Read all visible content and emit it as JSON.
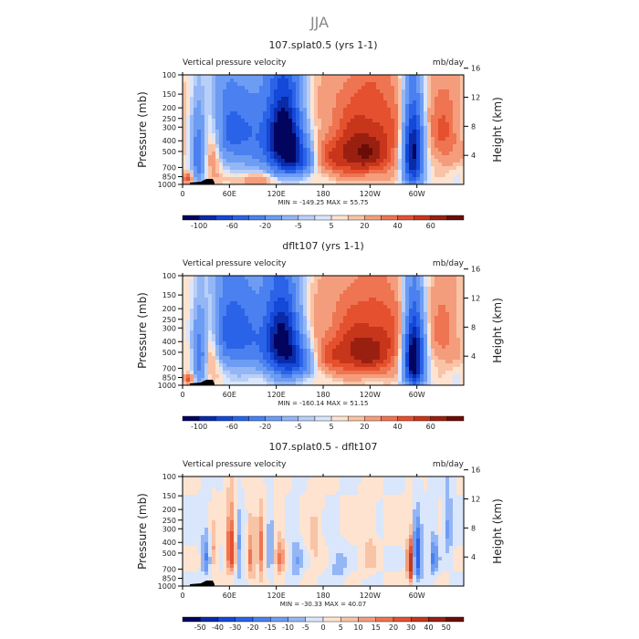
{
  "figure_title": "JJA",
  "chart_data": [
    {
      "type": "heatmap",
      "title": "107.splat0.5 (yrs 1-1)",
      "left_label": "Vertical pressure velocity",
      "right_label": "mb/day",
      "ylabel": "Pressure (mb)",
      "y2label": "Height (km)",
      "x_ticks": [
        "0",
        "60E",
        "120E",
        "180",
        "120W",
        "60W"
      ],
      "x_tick_lons": [
        0,
        60,
        120,
        180,
        240,
        300
      ],
      "xlim": [
        0,
        360
      ],
      "p_ticks": [
        "100",
        "150",
        "200",
        "250",
        "300",
        "400",
        "500",
        "700",
        "850",
        "1000"
      ],
      "p_tick_vals": [
        100,
        150,
        200,
        250,
        300,
        400,
        500,
        700,
        850,
        1000
      ],
      "ylim": [
        100,
        1000
      ],
      "h_ticks": [
        "16",
        "12",
        "8",
        "4"
      ],
      "h_tick_vals": [
        16,
        12,
        8,
        4
      ],
      "stats": "MIN = -149.25   MAX =  55.75",
      "min": -149.25,
      "max": 55.75,
      "colorbar_labels": [
        "-100",
        "-60",
        "-20",
        "-5",
        "5",
        "20",
        "40",
        "60"
      ],
      "levels": [
        -120,
        -100,
        -80,
        -60,
        -40,
        -20,
        -10,
        -5,
        0,
        5,
        10,
        20,
        30,
        40,
        50,
        60
      ],
      "colors": [
        "#03045e",
        "#0a2aa8",
        "#1448d8",
        "#2a63e8",
        "#4a80ef",
        "#6d9cf3",
        "#94b6f5",
        "#b8cff8",
        "#dae6fb",
        "#fde3d0",
        "#f9c3a6",
        "#f49d7c",
        "#ee7452",
        "#e5502e",
        "#c7351b",
        "#992011",
        "#6b0d06"
      ],
      "features": [
        {
          "lon": 130,
          "p": 380,
          "w": 16,
          "h": 260,
          "amp": -150
        },
        {
          "lon": 150,
          "p": 600,
          "w": 14,
          "h": 160,
          "amp": -60
        },
        {
          "lon": 85,
          "p": 330,
          "w": 20,
          "h": 230,
          "amp": -55
        },
        {
          "lon": 55,
          "p": 300,
          "w": 14,
          "h": 200,
          "amp": -45
        },
        {
          "lon": 20,
          "p": 550,
          "w": 6,
          "h": 250,
          "amp": -60
        },
        {
          "lon": 295,
          "p": 520,
          "w": 9,
          "h": 300,
          "amp": -140
        },
        {
          "lon": 210,
          "p": 550,
          "w": 35,
          "h": 200,
          "amp": 40
        },
        {
          "lon": 245,
          "p": 400,
          "w": 30,
          "h": 280,
          "amp": 35
        },
        {
          "lon": 335,
          "p": 350,
          "w": 16,
          "h": 220,
          "amp": 30
        },
        {
          "lon": 40,
          "p": 500,
          "w": 8,
          "h": 200,
          "amp": 30
        },
        {
          "lon": 8,
          "p": 880,
          "w": 5,
          "h": 70,
          "amp": 40
        },
        {
          "lon": 100,
          "p": 900,
          "w": 30,
          "h": 80,
          "amp": 20
        },
        {
          "lon": 180,
          "p": 160,
          "w": 90,
          "h": 90,
          "amp": 8
        }
      ]
    },
    {
      "type": "heatmap",
      "title": "dflt107 (yrs 1-1)",
      "left_label": "Vertical pressure velocity",
      "right_label": "mb/day",
      "ylabel": "Pressure (mb)",
      "y2label": "Height (km)",
      "x_ticks": [
        "0",
        "60E",
        "120E",
        "180",
        "120W",
        "60W"
      ],
      "x_tick_lons": [
        0,
        60,
        120,
        180,
        240,
        300
      ],
      "xlim": [
        0,
        360
      ],
      "p_ticks": [
        "100",
        "150",
        "200",
        "250",
        "300",
        "400",
        "500",
        "700",
        "850",
        "1000"
      ],
      "p_tick_vals": [
        100,
        150,
        200,
        250,
        300,
        400,
        500,
        700,
        850,
        1000
      ],
      "ylim": [
        100,
        1000
      ],
      "h_ticks": [
        "16",
        "12",
        "8",
        "4"
      ],
      "h_tick_vals": [
        16,
        12,
        8,
        4
      ],
      "stats": "MIN = -160.14   MAX =  51.15",
      "min": -160.14,
      "max": 51.15,
      "colorbar_labels": [
        "-100",
        "-60",
        "-20",
        "-5",
        "5",
        "20",
        "40",
        "60"
      ],
      "levels": [
        -120,
        -100,
        -80,
        -60,
        -40,
        -20,
        -10,
        -5,
        0,
        5,
        10,
        20,
        30,
        40,
        50,
        60
      ],
      "colors": [
        "#03045e",
        "#0a2aa8",
        "#1448d8",
        "#2a63e8",
        "#4a80ef",
        "#6d9cf3",
        "#94b6f5",
        "#b8cff8",
        "#dae6fb",
        "#fde3d0",
        "#f9c3a6",
        "#f49d7c",
        "#ee7452",
        "#e5502e",
        "#c7351b",
        "#992011",
        "#6b0d06"
      ],
      "features": [
        {
          "lon": 128,
          "p": 400,
          "w": 16,
          "h": 260,
          "amp": -130
        },
        {
          "lon": 150,
          "p": 620,
          "w": 14,
          "h": 150,
          "amp": -55
        },
        {
          "lon": 80,
          "p": 330,
          "w": 22,
          "h": 240,
          "amp": -60
        },
        {
          "lon": 55,
          "p": 300,
          "w": 14,
          "h": 200,
          "amp": -40
        },
        {
          "lon": 22,
          "p": 550,
          "w": 6,
          "h": 250,
          "amp": -55
        },
        {
          "lon": 296,
          "p": 560,
          "w": 9,
          "h": 300,
          "amp": -160
        },
        {
          "lon": 210,
          "p": 520,
          "w": 38,
          "h": 200,
          "amp": 38
        },
        {
          "lon": 250,
          "p": 420,
          "w": 30,
          "h": 260,
          "amp": 32
        },
        {
          "lon": 335,
          "p": 350,
          "w": 16,
          "h": 220,
          "amp": 22
        },
        {
          "lon": 38,
          "p": 500,
          "w": 8,
          "h": 200,
          "amp": 28
        },
        {
          "lon": 8,
          "p": 880,
          "w": 5,
          "h": 70,
          "amp": 35
        },
        {
          "lon": 180,
          "p": 160,
          "w": 90,
          "h": 90,
          "amp": 8
        }
      ]
    },
    {
      "type": "heatmap",
      "title": "107.splat0.5 - dflt107",
      "left_label": "Vertical pressure velocity",
      "right_label": "mb/day",
      "ylabel": "Pressure (mb)",
      "y2label": "Height (km)",
      "x_ticks": [
        "0",
        "60E",
        "120E",
        "180",
        "120W",
        "60W"
      ],
      "x_tick_lons": [
        0,
        60,
        120,
        180,
        240,
        300
      ],
      "xlim": [
        0,
        360
      ],
      "p_ticks": [
        "100",
        "150",
        "200",
        "250",
        "300",
        "400",
        "500",
        "700",
        "850",
        "1000"
      ],
      "p_tick_vals": [
        100,
        150,
        200,
        250,
        300,
        400,
        500,
        700,
        850,
        1000
      ],
      "ylim": [
        100,
        1000
      ],
      "h_ticks": [
        "16",
        "12",
        "8",
        "4"
      ],
      "h_tick_vals": [
        16,
        12,
        8,
        4
      ],
      "stats": "MIN = -30.33   MAX =  40.07",
      "min": -30.33,
      "max": 40.07,
      "colorbar_labels": [
        "-50",
        "-40",
        "-30",
        "-20",
        "-15",
        "-10",
        "-5",
        "0",
        "5",
        "10",
        "15",
        "20",
        "30",
        "40",
        "50"
      ],
      "levels": [
        -50,
        -40,
        -30,
        -20,
        -15,
        -10,
        -5,
        0,
        5,
        10,
        15,
        20,
        30,
        40,
        50
      ],
      "colors": [
        "#03045e",
        "#0a2aa8",
        "#1448d8",
        "#2a63e8",
        "#4a80ef",
        "#6d9cf3",
        "#94b6f5",
        "#dae6fb",
        "#fde3d0",
        "#f9c3a6",
        "#f49d7c",
        "#ee7452",
        "#e5502e",
        "#c7351b",
        "#992011",
        "#6b0d06"
      ],
      "features": [
        {
          "lon": 62,
          "p": 450,
          "w": 4,
          "h": 200,
          "amp": 28
        },
        {
          "lon": 72,
          "p": 500,
          "w": 3,
          "h": 200,
          "amp": -12
        },
        {
          "lon": 88,
          "p": 550,
          "w": 3,
          "h": 220,
          "amp": 18
        },
        {
          "lon": 100,
          "p": 500,
          "w": 3,
          "h": 200,
          "amp": 20
        },
        {
          "lon": 112,
          "p": 450,
          "w": 3,
          "h": 200,
          "amp": -12
        },
        {
          "lon": 125,
          "p": 550,
          "w": 4,
          "h": 200,
          "amp": 15
        },
        {
          "lon": 145,
          "p": 600,
          "w": 6,
          "h": 180,
          "amp": -10
        },
        {
          "lon": 30,
          "p": 550,
          "w": 4,
          "h": 180,
          "amp": -15
        },
        {
          "lon": 40,
          "p": 500,
          "w": 3,
          "h": 150,
          "amp": 12
        },
        {
          "lon": 292,
          "p": 620,
          "w": 3,
          "h": 200,
          "amp": 40
        },
        {
          "lon": 300,
          "p": 550,
          "w": 4,
          "h": 200,
          "amp": -30
        },
        {
          "lon": 322,
          "p": 550,
          "w": 4,
          "h": 180,
          "amp": -16
        },
        {
          "lon": 340,
          "p": 300,
          "w": 4,
          "h": 150,
          "amp": -12
        },
        {
          "lon": 200,
          "p": 650,
          "w": 8,
          "h": 150,
          "amp": -8
        },
        {
          "lon": 240,
          "p": 500,
          "w": 6,
          "h": 200,
          "amp": 8
        },
        {
          "lon": 170,
          "p": 400,
          "w": 6,
          "h": 200,
          "amp": 7
        }
      ]
    }
  ]
}
